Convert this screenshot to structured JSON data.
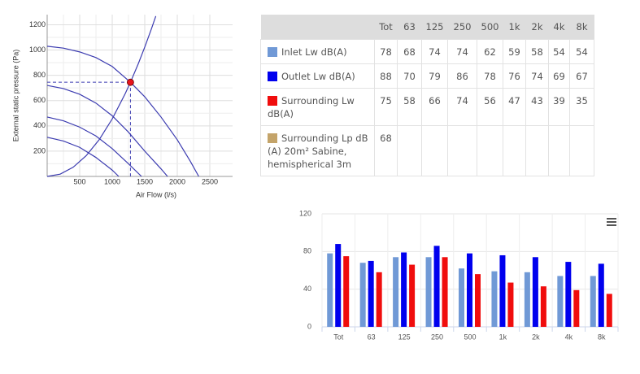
{
  "chart_data": [
    {
      "type": "line",
      "xlabel": "Air Flow (l/s)",
      "ylabel": "External static pressure (Pa)",
      "xlim": [
        0,
        2850
      ],
      "ylim": [
        0,
        1280
      ],
      "xticks": [
        500,
        1000,
        1500,
        2000,
        2500
      ],
      "yticks": [
        200,
        400,
        600,
        800,
        1000,
        1200
      ],
      "grid": true,
      "color": "#3b3bb0",
      "series": [
        {
          "x": [
            0,
            250,
            500,
            750,
            1000,
            1280,
            1500,
            1750,
            2000,
            2200,
            2330
          ],
          "values": [
            1030,
            1015,
            985,
            940,
            870,
            745,
            630,
            470,
            290,
            120,
            0
          ]
        },
        {
          "x": [
            0,
            250,
            500,
            750,
            1000,
            1250,
            1500,
            1750,
            1850
          ],
          "values": [
            720,
            695,
            650,
            580,
            480,
            350,
            200,
            60,
            0
          ]
        },
        {
          "x": [
            0,
            250,
            500,
            750,
            1000,
            1250,
            1450
          ],
          "values": [
            470,
            440,
            390,
            320,
            220,
            100,
            0
          ]
        },
        {
          "x": [
            0,
            250,
            500,
            750,
            1000,
            1100
          ],
          "values": [
            310,
            280,
            230,
            150,
            50,
            0
          ]
        },
        {
          "x": [
            0,
            200,
            400,
            600,
            800,
            1000,
            1200,
            1280,
            1400,
            1500,
            1600,
            1670
          ],
          "values": [
            0,
            18,
            73,
            164,
            291,
            455,
            655,
            745,
            891,
            1023,
            1164,
            1268
          ]
        }
      ],
      "operating_point": {
        "x": 1280,
        "y": 745,
        "color": "#e8141c"
      }
    },
    {
      "type": "bar",
      "categories": [
        "Tot",
        "63",
        "125",
        "250",
        "500",
        "1k",
        "2k",
        "4k",
        "8k"
      ],
      "ylim": [
        0,
        120
      ],
      "yticks": [
        0,
        40,
        80,
        120
      ],
      "grid": true,
      "series": [
        {
          "color": "#7099d6",
          "values": [
            78,
            68,
            74,
            74,
            62,
            59,
            58,
            54,
            54
          ]
        },
        {
          "color": "#0000ee",
          "values": [
            88,
            70,
            79,
            86,
            78,
            76,
            74,
            69,
            67
          ]
        },
        {
          "color": "#f00d0d",
          "values": [
            75,
            58,
            66,
            74,
            56,
            47,
            43,
            39,
            35
          ]
        }
      ]
    }
  ],
  "table": {
    "header": [
      "Tot",
      "63",
      "125",
      "250",
      "500",
      "1k",
      "2k",
      "4k",
      "8k"
    ],
    "rows": [
      {
        "label": "Inlet Lw dB(A)",
        "color": "#7099d6",
        "values": [
          78,
          68,
          74,
          74,
          62,
          59,
          58,
          54,
          54
        ]
      },
      {
        "label": "Outlet Lw dB(A)",
        "color": "#0000ee",
        "values": [
          88,
          70,
          79,
          86,
          78,
          76,
          74,
          69,
          67
        ]
      },
      {
        "label": "Surrounding Lw dB(A)",
        "color": "#f00d0d",
        "values": [
          75,
          58,
          66,
          74,
          56,
          47,
          43,
          39,
          35
        ]
      },
      {
        "label": "Surrounding Lp dB (A) 20m² Sabine, hemispherical 3m",
        "color": "#c4a46a",
        "values": [
          68
        ]
      }
    ]
  }
}
